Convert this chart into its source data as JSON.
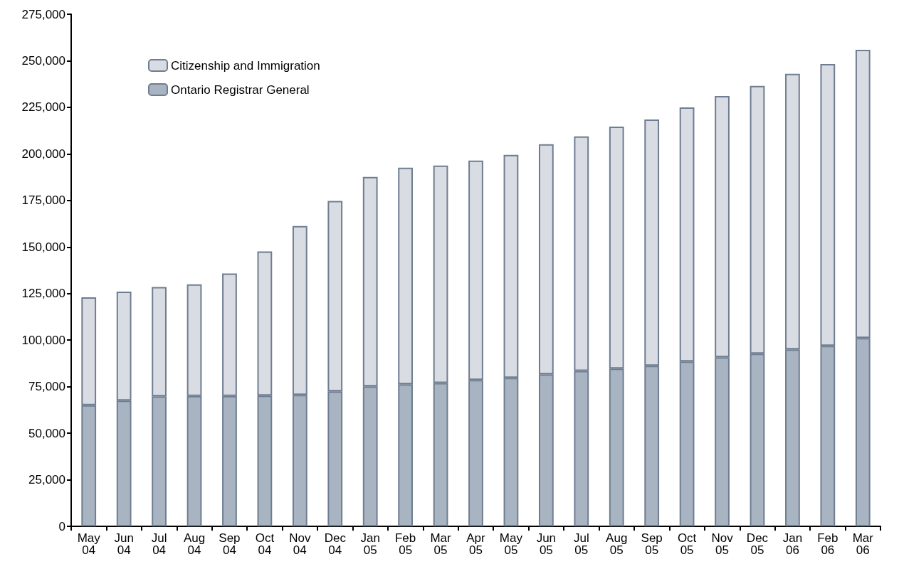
{
  "chart_data": {
    "type": "bar",
    "stacked": true,
    "categories": [
      "May\n04",
      "Jun\n04",
      "Jul\n04",
      "Aug\n04",
      "Sep\n04",
      "Oct\n04",
      "Nov\n04",
      "Dec\n04",
      "Jan\n05",
      "Feb\n05",
      "Mar\n05",
      "Apr\n05",
      "May\n05",
      "Jun\n05",
      "Jul\n05",
      "Aug\n05",
      "Sep\n05",
      "Oct\n05",
      "Nov\n05",
      "Dec\n05",
      "Jan\n06",
      "Feb\n06",
      "Mar\n06"
    ],
    "series": [
      {
        "name": "Ontario Registrar General",
        "color": "#a9b4c2",
        "values": [
          65000,
          67500,
          69800,
          70000,
          70000,
          70200,
          70600,
          72500,
          75100,
          76300,
          77000,
          78600,
          79700,
          81600,
          83500,
          84700,
          86200,
          88500,
          90800,
          92700,
          95000,
          96900,
          101100
        ]
      },
      {
        "name": "Citizenship and Immigration",
        "color": "#d9dce3",
        "values": [
          58000,
          58500,
          58700,
          60000,
          65800,
          77400,
          90700,
          102200,
          112500,
          116300,
          116700,
          117800,
          119800,
          123600,
          125900,
          130000,
          132300,
          136500,
          140300,
          143800,
          148000,
          151400,
          154800
        ]
      }
    ],
    "ylim": [
      0,
      275000
    ],
    "yticks": [
      {
        "value": 0,
        "label": "0"
      },
      {
        "value": 25000,
        "label": "25,000"
      },
      {
        "value": 50000,
        "label": "50,000"
      },
      {
        "value": 75000,
        "label": "75,000"
      },
      {
        "value": 100000,
        "label": "100,000"
      },
      {
        "value": 125000,
        "label": "125,000"
      },
      {
        "value": 150000,
        "label": "150,000"
      },
      {
        "value": 175000,
        "label": "175,000"
      },
      {
        "value": 200000,
        "label": "200,000"
      },
      {
        "value": 225000,
        "label": "225,000"
      },
      {
        "value": 250000,
        "label": "250,000"
      },
      {
        "value": 275000,
        "label": "275,000"
      }
    ],
    "grid": false,
    "legend": "top left"
  }
}
